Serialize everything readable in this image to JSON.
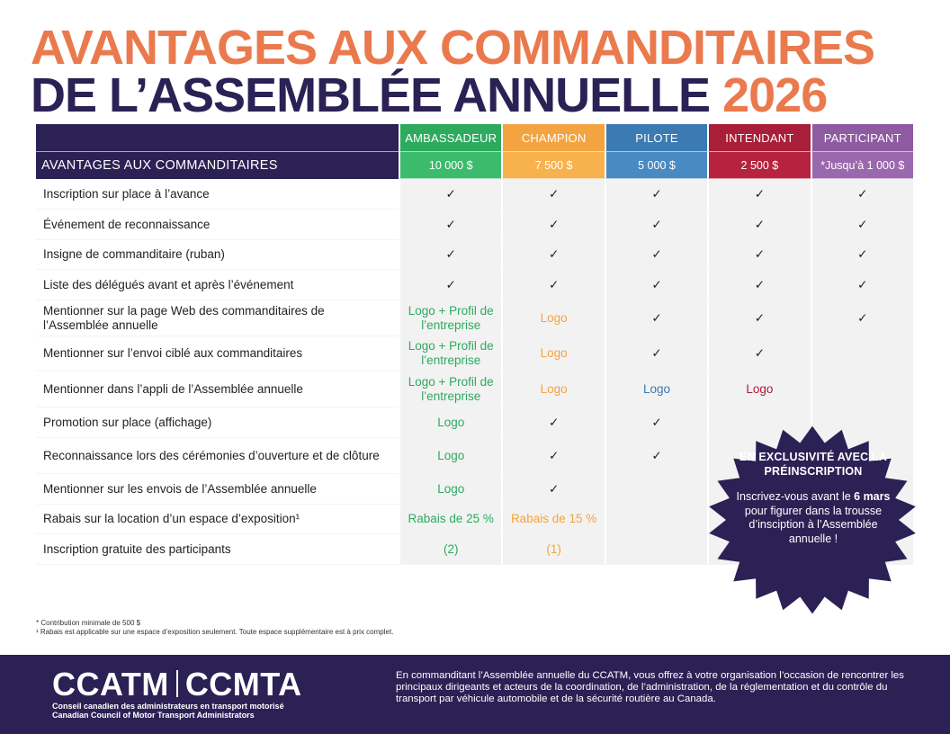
{
  "title": {
    "line1": "AVANTAGES AUX COMMANDITAIRES",
    "line2": "DE L’ASSEMBLÉE ANNUELLE",
    "year": "2026"
  },
  "table": {
    "benefits_header": "AVANTAGES AUX COMMANDITAIRES",
    "tiers": [
      {
        "name": "AMBASSADEUR",
        "price": "10 000 $"
      },
      {
        "name": "CHAMPION",
        "price": "7 500 $"
      },
      {
        "name": "PILOTE",
        "price": "5 000 $"
      },
      {
        "name": "INTENDANT",
        "price": "2 500 $"
      },
      {
        "name": "PARTICIPANT",
        "price": "*Jusqu’à 1 000 $"
      }
    ],
    "rows": [
      {
        "label": "Inscription sur place à l’avance",
        "cells": [
          "✓",
          "✓",
          "✓",
          "✓",
          "✓"
        ]
      },
      {
        "label": "Événement de reconnaissance",
        "cells": [
          "✓",
          "✓",
          "✓",
          "✓",
          "✓"
        ]
      },
      {
        "label": "Insigne de commanditaire (ruban)",
        "cells": [
          "✓",
          "✓",
          "✓",
          "✓",
          "✓"
        ]
      },
      {
        "label": "Liste des délégués avant et après l’événement",
        "cells": [
          "✓",
          "✓",
          "✓",
          "✓",
          "✓"
        ]
      },
      {
        "label": "Mentionner sur la page Web des commanditaires de l’Assemblée annuelle",
        "cells": [
          "Logo + Profil de l’entreprise",
          "Logo",
          "✓",
          "✓",
          "✓"
        ]
      },
      {
        "label": "Mentionner sur l’envoi ciblé aux commanditaires",
        "cells": [
          "Logo + Profil de l’entreprise",
          "Logo",
          "✓",
          "✓",
          ""
        ]
      },
      {
        "label": "Mentionner dans l’appli de l’Assemblée annuelle",
        "cells": [
          "Logo + Profil de l’entreprise",
          "Logo",
          "Logo",
          "Logo",
          ""
        ]
      },
      {
        "label": "Promotion sur place (affichage)",
        "cells": [
          "Logo",
          "✓",
          "✓",
          "",
          ""
        ]
      },
      {
        "label": "Reconnaissance lors des cérémonies d’ouverture et de clôture",
        "cells": [
          "Logo",
          "✓",
          "✓",
          "",
          ""
        ]
      },
      {
        "label": "Mentionner sur les envois de l’Assemblée annuelle",
        "cells": [
          "Logo",
          "✓",
          "",
          "",
          ""
        ]
      },
      {
        "label": "Rabais sur la location d’un espace d’exposition¹",
        "cells": [
          "Rabais de 25 %",
          "Rabais de 15 %",
          "",
          "",
          ""
        ]
      },
      {
        "label": "Inscription gratuite des participants",
        "cells": [
          "(2)",
          "(1)",
          "",
          "",
          ""
        ]
      }
    ]
  },
  "callout": {
    "heading": "EN EXCLUSIVITÉ AVEC LA PRÉINSCRIPTION",
    "body_before": "Inscrivez-vous avant le ",
    "body_bold": "6 mars",
    "body_after": " pour figurer dans la trousse d’insciption à l’Assemblée annuelle !"
  },
  "footnotes": {
    "note1": "* Contribution minimale de 500 $",
    "note2": "¹ Rabais est applicable sur une espace d’exposition seulement. Toute espace supplémentaire est à prix complet."
  },
  "footer": {
    "logo_left": "CCATM",
    "logo_right": "CCMTA",
    "logo_sub_fr": "Conseil canadien des administrateurs en transport motorisé",
    "logo_sub_en": "Canadian Council of Motor Transport Administrators",
    "text": "En commanditant l’Assemblée annuelle du CCATM, vous offrez à votre organisation l’occasion de rencontrer les principaux dirigeants et acteurs de la coordination, de l’administration, de la réglementation et du contrôle du transport par véhicule automobile et de la sécurité routière au Canada."
  },
  "colors": {
    "navy": "#2c2155",
    "title_orange": "#ea7a4d",
    "ambassadeur": "#2daa5e",
    "champion": "#f4a341",
    "pilote": "#3c7ab3",
    "intendant": "#a91e38",
    "participant": "#8e5aa1"
  }
}
